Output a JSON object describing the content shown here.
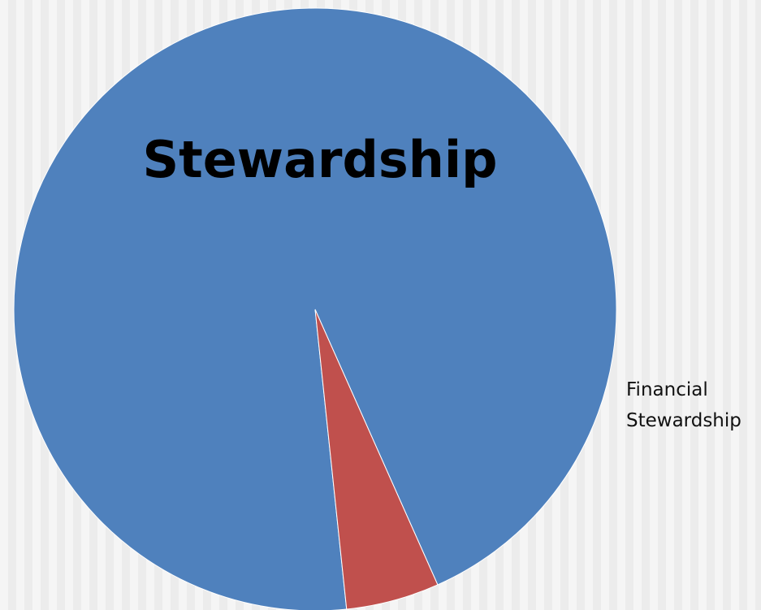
{
  "chart_data": {
    "type": "pie",
    "title": "",
    "start_angle_deg": 84,
    "direction": "clockwise",
    "slices": [
      {
        "label": "Stewardship",
        "value": 95,
        "color": "#4f81bd"
      },
      {
        "label": "Financial Stewardship",
        "value": 5,
        "color": "#c0504d"
      }
    ],
    "labels": {
      "main": "Stewardship",
      "small_lines": [
        "Financial",
        "Stewardship"
      ]
    },
    "legend": "none"
  }
}
